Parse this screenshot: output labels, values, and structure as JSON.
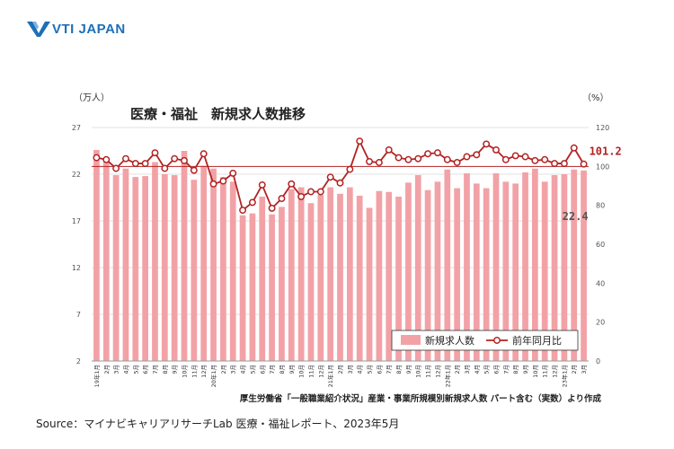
{
  "logo": {
    "brand": "VTI JAPAN",
    "mark_icon": "vti-logo-icon",
    "brand_color": "#1d6fb8"
  },
  "source_text": "Source：マイナビキャリアリサーチLab 医療・福祉レポート、2023年5月",
  "chart_data": {
    "type": "bar+line",
    "title": "医療・福祉　新規求人数推移",
    "left_unit": "（万人）",
    "right_unit": "（%）",
    "note": "厚生労働省「一般職業紹介状況」産業・事業所規模別新規求人数 パート含む（実数）より作成",
    "left_axis": {
      "min": 2,
      "max": 27,
      "ticks": [
        2,
        7,
        12,
        17,
        22,
        27
      ]
    },
    "right_axis": {
      "min": 0,
      "max": 120,
      "ticks": [
        0,
        20,
        40,
        60,
        80,
        100,
        120
      ]
    },
    "reference_line": 100,
    "categories": [
      "19年1月",
      "2月",
      "3月",
      "4月",
      "5月",
      "6月",
      "7月",
      "8月",
      "9月",
      "10月",
      "11月",
      "12月",
      "20年1月",
      "2月",
      "3月",
      "4月",
      "5月",
      "6月",
      "7月",
      "8月",
      "9月",
      "10月",
      "11月",
      "12月",
      "21年1月",
      "2月",
      "3月",
      "4月",
      "5月",
      "6月",
      "7月",
      "8月",
      "9月",
      "10月",
      "11月",
      "12月",
      "22年1月",
      "2月",
      "3月",
      "4月",
      "5月",
      "6月",
      "7月",
      "8月",
      "9月",
      "10月",
      "11月",
      "12月",
      "23年1月",
      "2月",
      "3月"
    ],
    "series": [
      {
        "name": "新規求人数",
        "type": "bar",
        "axis": "left",
        "color": "#f2a2a6",
        "values": [
          24.6,
          23.6,
          21.9,
          22.6,
          21.7,
          21.8,
          23.3,
          22.0,
          21.9,
          24.5,
          21.4,
          22.9,
          22.6,
          21.7,
          21.2,
          17.6,
          17.8,
          19.6,
          17.7,
          18.5,
          20.4,
          20.6,
          18.9,
          19.8,
          20.6,
          19.9,
          20.6,
          19.7,
          18.4,
          20.2,
          20.1,
          19.6,
          21.1,
          21.9,
          20.3,
          21.2,
          22.5,
          20.5,
          22.1,
          21.0,
          20.5,
          22.1,
          21.2,
          21.0,
          22.2,
          22.6,
          21.2,
          21.9,
          22.0,
          22.5,
          22.4
        ]
      },
      {
        "name": "前年同月比",
        "type": "line",
        "axis": "right",
        "color": "#b22222",
        "values": [
          104.5,
          103.5,
          99.0,
          104.0,
          101.5,
          101.5,
          107.0,
          99.0,
          104.0,
          103.0,
          98.0,
          106.5,
          91.0,
          92.5,
          96.5,
          77.5,
          81.5,
          90.5,
          78.5,
          83.5,
          91.0,
          84.5,
          87.0,
          87.0,
          94.5,
          91.5,
          98.5,
          113.0,
          102.5,
          102.0,
          108.5,
          104.5,
          103.5,
          104.0,
          106.5,
          107.0,
          103.5,
          102.0,
          105.0,
          106.0,
          111.5,
          108.5,
          103.5,
          105.5,
          105.0,
          103.0,
          103.5,
          101.5,
          101.5,
          109.5,
          101.2
        ]
      }
    ],
    "data_labels": {
      "line_last": "101.2",
      "bar_last": "22.4"
    }
  }
}
